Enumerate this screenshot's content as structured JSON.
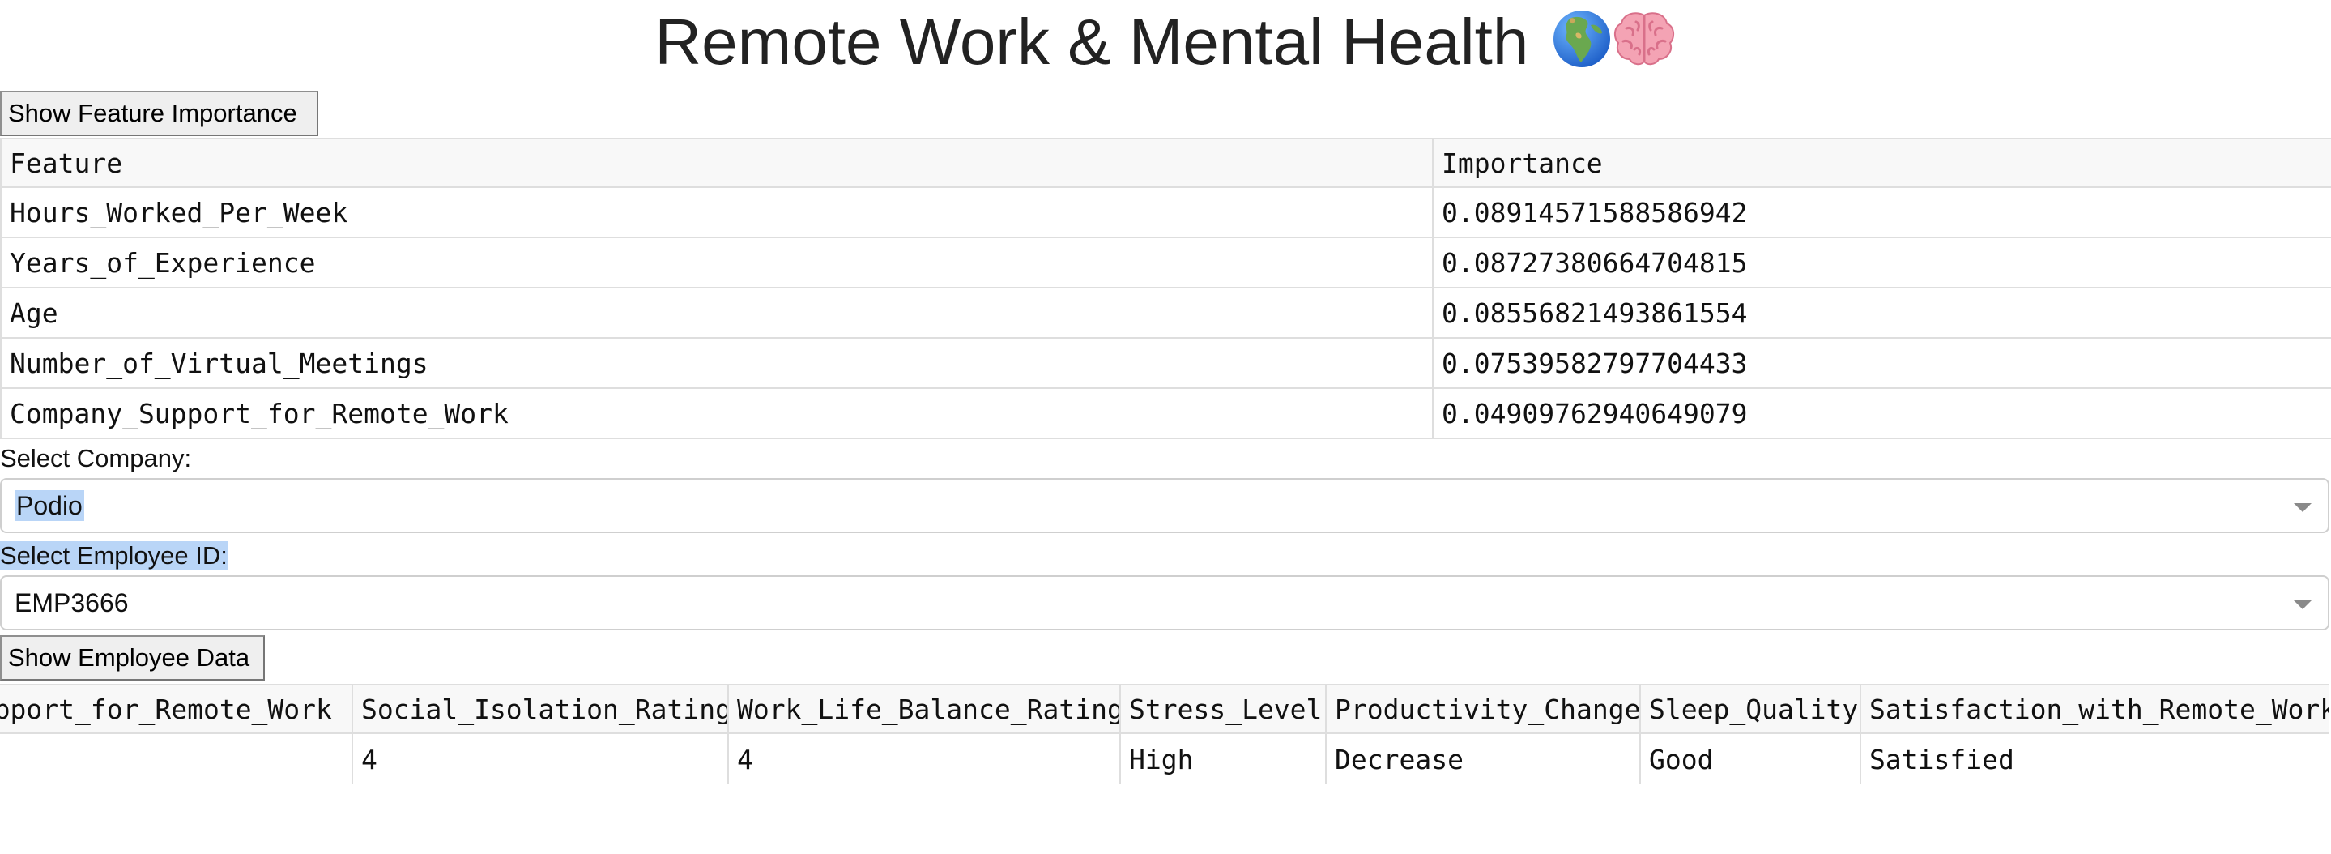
{
  "header": {
    "title": "Remote Work & Mental Health"
  },
  "feature_importance": {
    "button_label": "Show Feature Importance",
    "columns": [
      "Feature",
      "Importance"
    ],
    "rows": [
      [
        "Hours_Worked_Per_Week",
        "0.08914571588586942"
      ],
      [
        "Years_of_Experience",
        "0.08727380664704815"
      ],
      [
        "Age",
        "0.08556821493861554"
      ],
      [
        "Number_of_Virtual_Meetings",
        "0.07539582797704433"
      ],
      [
        "Company_Support_for_Remote_Work",
        "0.04909762940649079"
      ]
    ]
  },
  "company_select": {
    "label": "Select Company:",
    "value": "Podio"
  },
  "employee_select": {
    "label": "Select Employee ID:",
    "value": "EMP3666"
  },
  "employee_data": {
    "button_label": "Show Employee Data",
    "columns": [
      "Company_Support_for_Remote_Work",
      "Social_Isolation_Rating",
      "Work_Life_Balance_Rating",
      "Stress_Level",
      "Productivity_Change",
      "Sleep_Quality",
      "Satisfaction_with_Remote_Work"
    ],
    "row": [
      "",
      "4",
      "4",
      "High",
      "Decrease",
      "Good",
      "Satisfied"
    ]
  },
  "colors": {
    "selection_highlight": "#b9d5f7",
    "table_border": "#dedede",
    "button_bg": "#efefef"
  },
  "icons": [
    "globe-europe-africa-icon",
    "brain-icon"
  ]
}
